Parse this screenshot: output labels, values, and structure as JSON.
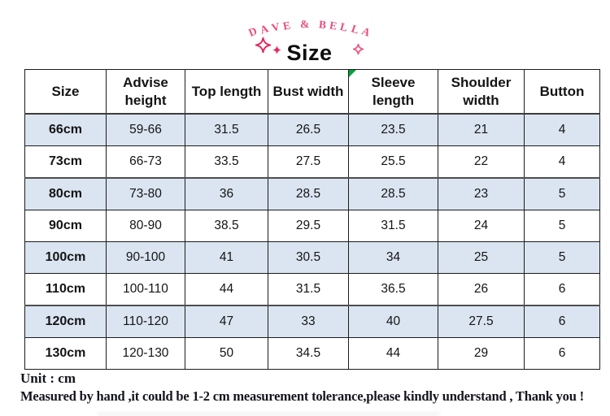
{
  "header": {
    "brand": "DAVE & BELLA",
    "title": "Size",
    "brand_color": "#e84c7d",
    "sparkle_color": "#e22a62"
  },
  "table": {
    "columns": [
      "Size",
      "Advise height",
      "Top length",
      "Bust width",
      "Sleeve length",
      "Shoulder width",
      "Button"
    ],
    "comment_marker_column": "Sleeve length",
    "comment_marker_color": "#00a33c",
    "row_highlight_color": "#dbe5f1",
    "rows": [
      [
        "66cm",
        "59-66",
        "31.5",
        "26.5",
        "23.5",
        "21",
        "4"
      ],
      [
        "73cm",
        "66-73",
        "33.5",
        "27.5",
        "25.5",
        "22",
        "4"
      ],
      [
        "80cm",
        "73-80",
        "36",
        "28.5",
        "28.5",
        "23",
        "5"
      ],
      [
        "90cm",
        "80-90",
        "38.5",
        "29.5",
        "31.5",
        "24",
        "5"
      ],
      [
        "100cm",
        "90-100",
        "41",
        "30.5",
        "34",
        "25",
        "5"
      ],
      [
        "110cm",
        "100-110",
        "44",
        "31.5",
        "36.5",
        "26",
        "6"
      ],
      [
        "120cm",
        "110-120",
        "47",
        "33",
        "40",
        "27.5",
        "6"
      ],
      [
        "130cm",
        "120-130",
        "50",
        "34.5",
        "44",
        "29",
        "6"
      ]
    ]
  },
  "footer": {
    "unit_note": "Unit : cm",
    "tolerance_note": "Measured by hand ,it could be 1-2 cm measurement tolerance,please kindly understand , Thank you !"
  }
}
